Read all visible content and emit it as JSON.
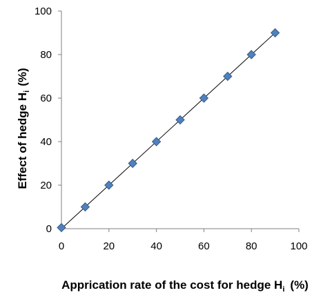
{
  "chart_data": {
    "type": "scatter",
    "title": "",
    "xlabel": {
      "text": "Apprication rate of the cost for hedge H",
      "subscript": "i",
      "suffix": "(%)"
    },
    "ylabel": {
      "text": "Effect of hedge H",
      "subscript": "i",
      "suffix": "(%)"
    },
    "xlim": [
      0,
      100
    ],
    "ylim": [
      0,
      100
    ],
    "x_ticks": [
      "0",
      "20",
      "40",
      "60",
      "80",
      "100"
    ],
    "y_ticks": [
      "0",
      "20",
      "40",
      "60",
      "80",
      "100"
    ],
    "grid": false,
    "legend": "none",
    "series": [
      {
        "x": [
          0,
          10,
          20,
          30,
          40,
          50,
          60,
          70,
          80,
          90
        ],
        "y": [
          0.5,
          10,
          20,
          30,
          40,
          50,
          60,
          70,
          80,
          90
        ]
      }
    ],
    "trendline": {
      "type": "linear",
      "from": [
        0,
        0
      ],
      "to": [
        90,
        90
      ]
    },
    "colors": {
      "marker_fill": "#4f81bd",
      "marker_stroke": "#385d8a",
      "trendline": "#000000",
      "axis": "#7f7f7f"
    }
  }
}
